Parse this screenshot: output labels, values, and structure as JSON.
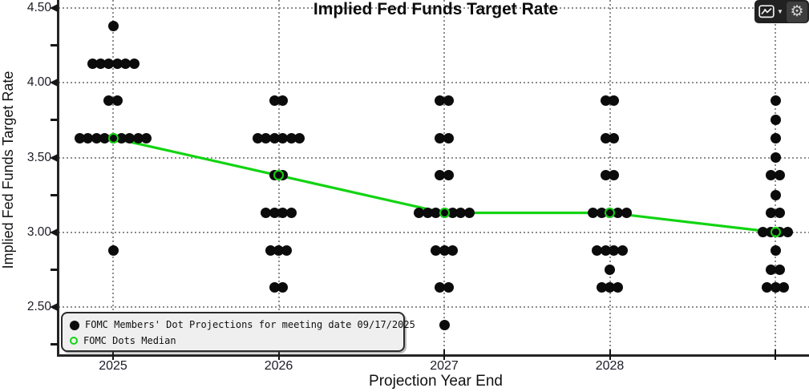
{
  "chart_data": {
    "type": "scatter",
    "title": "Implied Fed Funds Target Rate",
    "xlabel": "Projection Year End",
    "ylabel": "Implied Fed Funds Target Rate",
    "x_categories": [
      "2025",
      "2026",
      "2027",
      "2028",
      ""
    ],
    "y_axis": {
      "major_ticks": [
        4.5,
        4.0,
        3.5,
        3.0,
        2.5
      ],
      "minor_ticks": [
        4.25,
        3.75,
        3.25,
        2.75,
        2.25
      ],
      "tick_decimals": 2
    },
    "grid": {
      "horizontal": "dotted at each major tick",
      "vertical": "dotted at each year column"
    },
    "legend": {
      "position": "bottom-left",
      "items": [
        {
          "marker": "filled-black-dot",
          "label": "FOMC Members' Dot Projections for meeting date 09/17/2025"
        },
        {
          "marker": "open-green-circle",
          "label": "FOMC Dots Median"
        }
      ]
    },
    "series": [
      {
        "name": "FOMC Members' Dot Projections for meeting date 09/17/2025",
        "style": "clustered-black-dots",
        "columns": [
          {
            "x": "2025",
            "dots": [
              {
                "rate": 4.38,
                "count": 1
              },
              {
                "rate": 4.13,
                "count": 6
              },
              {
                "rate": 3.88,
                "count": 2
              },
              {
                "rate": 3.63,
                "count": 9
              },
              {
                "rate": 2.88,
                "count": 1
              }
            ]
          },
          {
            "x": "2026",
            "dots": [
              {
                "rate": 3.88,
                "count": 2
              },
              {
                "rate": 3.63,
                "count": 6
              },
              {
                "rate": 3.38,
                "count": 2
              },
              {
                "rate": 3.13,
                "count": 4
              },
              {
                "rate": 2.88,
                "count": 3
              },
              {
                "rate": 2.63,
                "count": 2
              }
            ]
          },
          {
            "x": "2027",
            "dots": [
              {
                "rate": 3.88,
                "count": 2
              },
              {
                "rate": 3.63,
                "count": 2
              },
              {
                "rate": 3.38,
                "count": 2
              },
              {
                "rate": 3.13,
                "count": 7
              },
              {
                "rate": 2.88,
                "count": 3
              },
              {
                "rate": 2.63,
                "count": 2
              },
              {
                "rate": 2.38,
                "count": 1
              }
            ]
          },
          {
            "x": "2028",
            "dots": [
              {
                "rate": 3.88,
                "count": 2
              },
              {
                "rate": 3.63,
                "count": 2
              },
              {
                "rate": 3.38,
                "count": 2
              },
              {
                "rate": 3.13,
                "count": 5
              },
              {
                "rate": 2.88,
                "count": 4
              },
              {
                "rate": 2.75,
                "count": 1
              },
              {
                "rate": 2.63,
                "count": 3
              }
            ]
          },
          {
            "x": "",
            "dots": [
              {
                "rate": 3.88,
                "count": 1
              },
              {
                "rate": 3.75,
                "count": 1
              },
              {
                "rate": 3.63,
                "count": 1
              },
              {
                "rate": 3.5,
                "count": 1
              },
              {
                "rate": 3.38,
                "count": 2
              },
              {
                "rate": 3.25,
                "count": 1
              },
              {
                "rate": 3.13,
                "count": 2
              },
              {
                "rate": 3.0,
                "count": 4
              },
              {
                "rate": 2.88,
                "count": 1
              },
              {
                "rate": 2.75,
                "count": 2
              },
              {
                "rate": 2.63,
                "count": 3
              }
            ]
          }
        ]
      },
      {
        "name": "FOMC Dots Median",
        "style": "green-line-with-open-circles",
        "values": [
          3.63,
          3.38,
          3.13,
          3.13,
          3.0
        ]
      }
    ],
    "colors": {
      "dot": "#0b0b0b",
      "median_green": "#12d412",
      "grid": "#8d8d8d",
      "axis": "#252525",
      "background": "#ffffff",
      "legend_bg": "#efefef"
    }
  },
  "toolbar": {
    "chart_button_icon": "line-chart-icon",
    "dropdown_icon": "caret-down-icon",
    "settings_icon": "gear-icon",
    "caret_glyph": "▼",
    "gear_glyph": "⚙"
  }
}
